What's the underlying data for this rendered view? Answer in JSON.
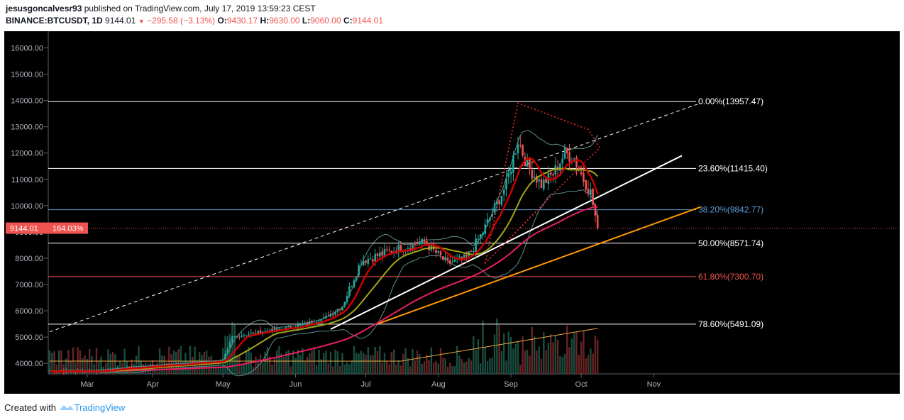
{
  "header": {
    "publisher": "jesusgoncalvesr93",
    "published_text": "published on TradingView.com, July 17, 2019 13:59:23 CEST",
    "symbol": "BINANCE:BTCUSDT, 1D",
    "last": "9144.01",
    "change": "−295.58 (−3.13%)",
    "o_label": "O:",
    "o": "9430.17",
    "h_label": "H:",
    "h": "9630.00",
    "l_label": "L:",
    "l": "9060.00",
    "c_label": "C:",
    "c": "9144.01"
  },
  "footer": {
    "created": "Created with",
    "brand": "TradingView"
  },
  "colors": {
    "background": "#000000",
    "candle_up": "#26a69a",
    "candle_down": "#ef5350",
    "ma_fast": "#cc0000",
    "ma_mid": "#a5a516",
    "ma_slow": "#e91e63",
    "bollinger": "#5f8f8f",
    "price_label": "#ef5350",
    "fib_382": "#5b9bd5",
    "fib_618": "#f05350",
    "trend_orange": "#ff9800"
  },
  "chart_data": {
    "type": "candlestick",
    "ylim": [
      3600,
      16500
    ],
    "y_ticks": [
      "16000.00",
      "15000.00",
      "14000.00",
      "13000.00",
      "12000.00",
      "11000.00",
      "10000.00",
      "9000.00",
      "8000.00",
      "7000.00",
      "6000.00",
      "5000.00",
      "4000.00"
    ],
    "y_tick_values": [
      16000,
      15000,
      14000,
      13000,
      12000,
      11000,
      10000,
      9000,
      8000,
      7000,
      6000,
      5000,
      4000
    ],
    "x_labels": [
      "Mar",
      "Apr",
      "May",
      "Jun",
      "Jul",
      "Aug",
      "Sep",
      "Oct",
      "Nov"
    ],
    "last_price_label": "9144.01",
    "last_price_pct": "164.03%",
    "last_price": 9144.01,
    "fib_levels": [
      {
        "label": "0.00%(13957.47)",
        "value": 13957.47
      },
      {
        "label": "23.60%(11415.40)",
        "value": 11415.4
      },
      {
        "label": "38.20%(9842.77)",
        "value": 9842.77
      },
      {
        "label": "50.00%(8571.74)",
        "value": 8571.74
      },
      {
        "label": "61.80%(7300.70)",
        "value": 7300.7
      },
      {
        "label": "78.60%(5491.09)",
        "value": 5491.09
      }
    ],
    "ohlc_anchor_closes": [
      [
        0,
        3700
      ],
      [
        20,
        3700
      ],
      [
        30,
        3800
      ],
      [
        45,
        3900
      ],
      [
        60,
        4000
      ],
      [
        74,
        4100
      ],
      [
        78,
        5000
      ],
      [
        90,
        5200
      ],
      [
        105,
        5400
      ],
      [
        117,
        5700
      ],
      [
        125,
        6200
      ],
      [
        133,
        7900
      ],
      [
        140,
        8100
      ],
      [
        150,
        8400
      ],
      [
        160,
        8600
      ],
      [
        170,
        7800
      ],
      [
        178,
        8000
      ],
      [
        185,
        9000
      ],
      [
        195,
        10800
      ],
      [
        200,
        12500
      ],
      [
        204,
        11500
      ],
      [
        210,
        10800
      ],
      [
        215,
        11200
      ],
      [
        220,
        12000
      ],
      [
        224,
        11800
      ],
      [
        228,
        11000
      ],
      [
        231,
        10500
      ],
      [
        234,
        9144
      ]
    ]
  }
}
